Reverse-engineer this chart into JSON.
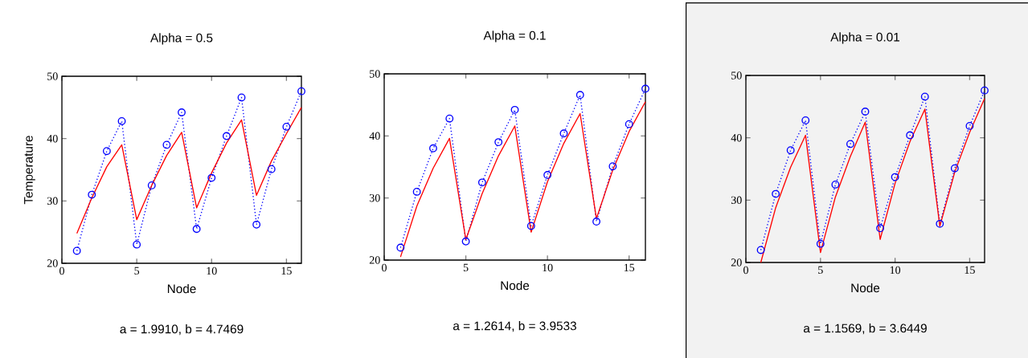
{
  "chart_data": [
    {
      "type": "line",
      "title": "Alpha = 0.5",
      "xlabel": "Node",
      "ylabel": "Temperature",
      "annotations": [
        "a = 1.9910,  b = 4.7469"
      ],
      "x": [
        1,
        2,
        3,
        4,
        5,
        6,
        7,
        8,
        9,
        10,
        11,
        12,
        13,
        14,
        15,
        16
      ],
      "xlim": [
        0,
        16
      ],
      "ylim": [
        20,
        50
      ],
      "xticks": [
        0,
        5,
        10,
        15
      ],
      "yticks": [
        20,
        30,
        40,
        50
      ],
      "series": [
        {
          "color": "#0000ff",
          "marker": "circle",
          "line_style": "dotted",
          "values": [
            22,
            31,
            38,
            42.8,
            23,
            32.5,
            39,
            44.2,
            25.5,
            33.7,
            40.4,
            46.6,
            26.2,
            35.1,
            41.9,
            47.6
          ]
        },
        {
          "color": "#ff0000",
          "marker": "none",
          "line_style": "solid",
          "values": [
            24.8,
            30.5,
            35.5,
            39,
            27,
            32.5,
            37.3,
            41,
            28.9,
            34.5,
            39.3,
            43,
            30.9,
            36.4,
            40.8,
            45
          ]
        }
      ]
    },
    {
      "type": "line",
      "title": "Alpha = 0.1",
      "xlabel": "Node",
      "annotations": [
        "a = 1.2614,  b = 3.9533"
      ],
      "x": [
        1,
        2,
        3,
        4,
        5,
        6,
        7,
        8,
        9,
        10,
        11,
        12,
        13,
        14,
        15,
        16
      ],
      "xlim": [
        0,
        16
      ],
      "ylim": [
        20,
        50
      ],
      "xticks": [
        0,
        5,
        10,
        15
      ],
      "yticks": [
        20,
        30,
        40,
        50
      ],
      "series": [
        {
          "color": "#0000ff",
          "marker": "circle",
          "line_style": "dotted",
          "values": [
            22,
            31,
            38,
            42.8,
            23,
            32.5,
            39,
            44.2,
            25.5,
            33.7,
            40.4,
            46.6,
            26.2,
            35.1,
            41.9,
            47.6
          ]
        },
        {
          "color": "#ff0000",
          "marker": "none",
          "line_style": "solid",
          "values": [
            20.5,
            28.7,
            34.8,
            39.6,
            23.3,
            30.7,
            36.8,
            41.6,
            24.5,
            32.6,
            38.8,
            43.6,
            26.7,
            34.5,
            40.7,
            45.5
          ]
        }
      ]
    },
    {
      "type": "line",
      "title": "Alpha = 0.01",
      "xlabel": "Node",
      "annotations": [
        "a = 1.1569,  b = 3.6449"
      ],
      "x": [
        1,
        2,
        3,
        4,
        5,
        6,
        7,
        8,
        9,
        10,
        11,
        12,
        13,
        14,
        15,
        16
      ],
      "xlim": [
        0,
        16
      ],
      "ylim": [
        20,
        50
      ],
      "xticks": [
        0,
        5,
        10,
        15
      ],
      "yticks": [
        20,
        30,
        40,
        50
      ],
      "series": [
        {
          "color": "#0000ff",
          "marker": "circle",
          "line_style": "dotted",
          "values": [
            22,
            31,
            38,
            42.8,
            23,
            32.5,
            39,
            44.2,
            25.5,
            33.7,
            40.4,
            46.6,
            26.2,
            35.1,
            41.9,
            47.6
          ]
        },
        {
          "color": "#ff0000",
          "marker": "none",
          "line_style": "solid",
          "values": [
            20,
            28.8,
            35.3,
            40.4,
            21.6,
            30.5,
            37,
            42.5,
            23.7,
            32.7,
            39.4,
            44.6,
            25.8,
            34.5,
            40.9,
            46.3
          ]
        }
      ]
    }
  ]
}
